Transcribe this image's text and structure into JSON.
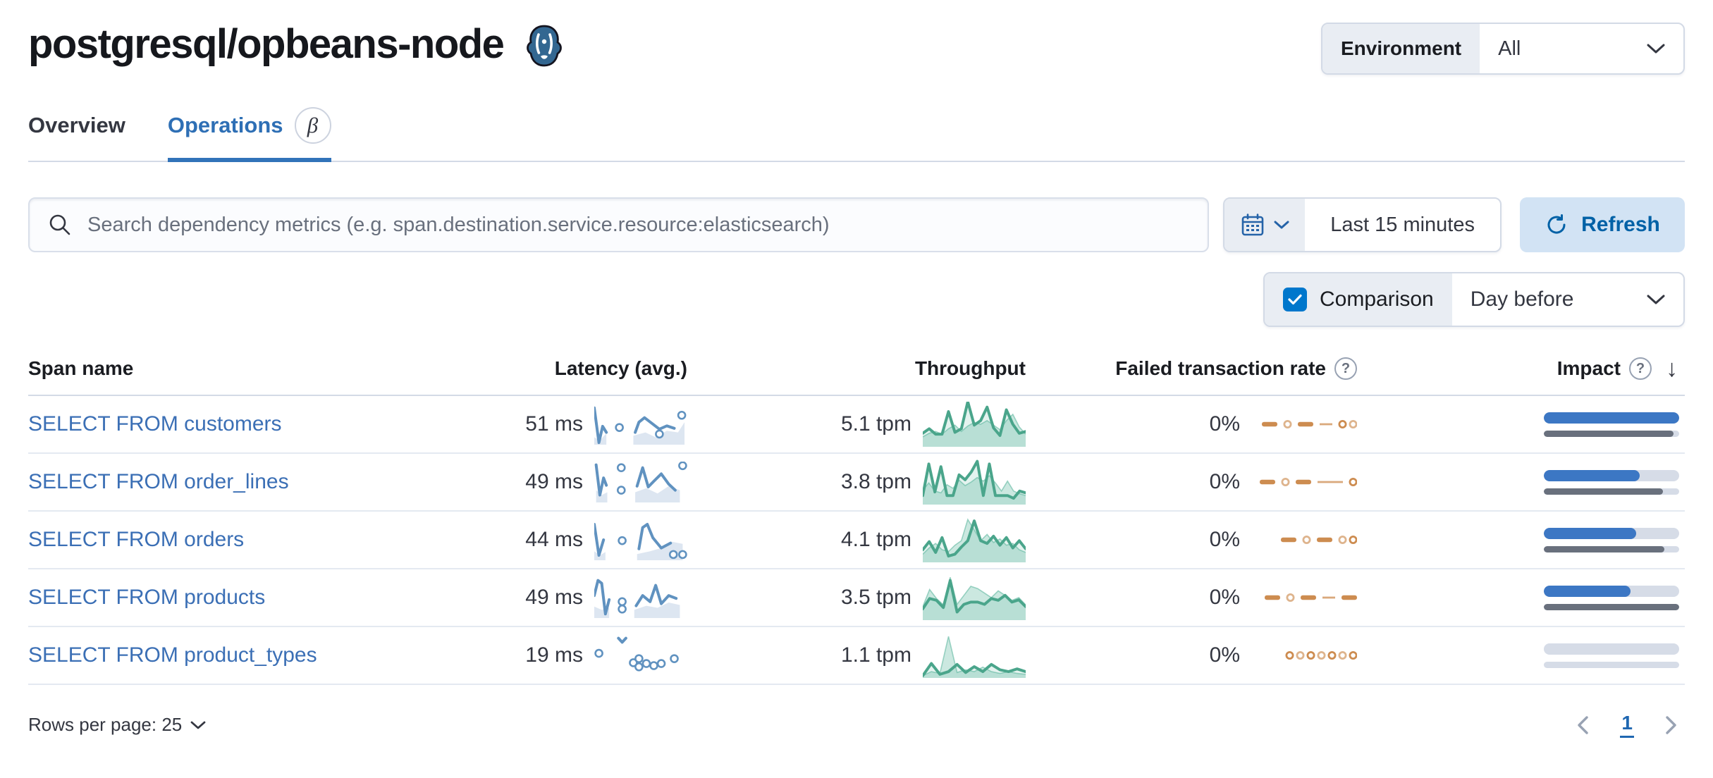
{
  "page": {
    "title": "postgresql/opbeans-node",
    "icon": "postgresql-elephant"
  },
  "environment": {
    "label": "Environment",
    "value": "All"
  },
  "tabs": {
    "overview": {
      "label": "Overview",
      "active": false
    },
    "operations": {
      "label": "Operations",
      "active": true,
      "badge": "β"
    }
  },
  "search": {
    "placeholder": "Search dependency metrics (e.g. span.destination.service.resource:elasticsearch)"
  },
  "time": {
    "range": "Last 15 minutes",
    "refresh_label": "Refresh"
  },
  "comparison": {
    "label": "Comparison",
    "checked": true,
    "value": "Day before"
  },
  "table": {
    "columns": {
      "span_name": "Span name",
      "latency": "Latency (avg.)",
      "throughput": "Throughput",
      "failed_rate": "Failed transaction rate",
      "impact": "Impact"
    },
    "sort": {
      "column": "Impact",
      "direction": "desc"
    },
    "rows": [
      {
        "span_name": "SELECT FROM customers",
        "latency": "51 ms",
        "throughput": "5.1 tpm",
        "failed_rate": "0%",
        "impact": {
          "current": 100,
          "previous": 96
        },
        "latency_spark": {
          "segments": [
            [
              [
                0.0,
                0.9
              ],
              [
                0.05,
                0.05
              ],
              [
                0.09,
                0.45
              ],
              [
                0.13,
                0.3
              ]
            ],
            [
              [
                0.44,
                0.3
              ],
              [
                0.48,
                0.55
              ],
              [
                0.54,
                0.66
              ],
              [
                0.62,
                0.52
              ],
              [
                0.7,
                0.38
              ],
              [
                0.78,
                0.46
              ],
              [
                0.86,
                0.4
              ]
            ]
          ],
          "areas": [
            [
              [
                0.0,
                0.18
              ],
              [
                0.06,
                0.1
              ],
              [
                0.13,
                0.28
              ],
              [
                0.13,
                0.0
              ],
              [
                0.0,
                0.0
              ]
            ],
            [
              [
                0.42,
                0.22
              ],
              [
                0.55,
                0.3
              ],
              [
                0.66,
                0.18
              ],
              [
                0.78,
                0.34
              ],
              [
                0.9,
                0.3
              ],
              [
                0.97,
                0.55
              ]
            ]
          ],
          "dots": [
            [
              0.27,
              0.42
            ],
            [
              0.7,
              0.26
            ],
            [
              0.94,
              0.72
            ]
          ]
        },
        "throughput_spark": {
          "current": [
            0.3,
            0.4,
            0.28,
            0.28,
            0.78,
            0.32,
            0.4,
            1.0,
            0.48,
            0.58,
            0.88,
            0.42,
            0.25,
            0.82,
            0.5,
            0.3,
            0.34
          ],
          "previous": [
            0.22,
            0.3,
            0.34,
            0.28,
            0.4,
            0.48,
            0.34,
            0.46,
            0.54,
            0.5,
            0.58,
            0.48,
            0.38,
            0.58,
            0.72,
            0.44,
            0.28
          ]
        },
        "failed_spark": [
          "dash",
          "circle",
          "dash",
          "line",
          "circle",
          "circle"
        ]
      },
      {
        "span_name": "SELECT FROM order_lines",
        "latency": "49 ms",
        "throughput": "3.8 tpm",
        "failed_rate": "0%",
        "impact": {
          "current": 71,
          "previous": 88
        },
        "latency_spark": {
          "segments": [
            [
              [
                0.02,
                0.92
              ],
              [
                0.06,
                0.18
              ],
              [
                0.1,
                0.6
              ],
              [
                0.13,
                0.42
              ]
            ],
            [
              [
                0.46,
                0.4
              ],
              [
                0.52,
                0.85
              ],
              [
                0.58,
                0.38
              ],
              [
                0.64,
                0.52
              ],
              [
                0.72,
                0.7
              ],
              [
                0.8,
                0.45
              ],
              [
                0.87,
                0.3
              ]
            ]
          ],
          "areas": [
            [
              [
                0.02,
                0.3
              ],
              [
                0.08,
                0.18
              ],
              [
                0.14,
                0.25
              ]
            ],
            [
              [
                0.44,
                0.25
              ],
              [
                0.56,
                0.35
              ],
              [
                0.68,
                0.22
              ],
              [
                0.8,
                0.4
              ],
              [
                0.92,
                0.3
              ]
            ]
          ],
          "dots": [
            [
              0.29,
              0.85
            ],
            [
              0.29,
              0.3
            ],
            [
              0.95,
              0.9
            ]
          ]
        },
        "throughput_spark": {
          "current": [
            0.2,
            0.9,
            0.28,
            0.84,
            0.2,
            0.2,
            0.66,
            0.55,
            0.72,
            0.96,
            0.2,
            0.9,
            0.2,
            0.2,
            0.2,
            0.14,
            0.3,
            0.26
          ],
          "previous": [
            0.32,
            0.48,
            0.3,
            0.26,
            0.44,
            0.36,
            0.54,
            0.42,
            0.5,
            0.6,
            0.52,
            0.64,
            0.48,
            0.3,
            0.52,
            0.3,
            0.24,
            0.2
          ]
        },
        "failed_spark": [
          "dash",
          "circle",
          "dash",
          "longline",
          "circle"
        ]
      },
      {
        "span_name": "SELECT FROM orders",
        "latency": "44 ms",
        "throughput": "4.1 tpm",
        "failed_rate": "0%",
        "impact": {
          "current": 68,
          "previous": 89
        },
        "latency_spark": {
          "segments": [
            [
              [
                0.0,
                0.88
              ],
              [
                0.05,
                0.12
              ],
              [
                0.1,
                0.5
              ]
            ],
            [
              [
                0.48,
                0.28
              ],
              [
                0.52,
                0.8
              ],
              [
                0.57,
                0.88
              ],
              [
                0.63,
                0.55
              ],
              [
                0.72,
                0.3
              ],
              [
                0.82,
                0.42
              ]
            ]
          ],
          "areas": [
            [
              [
                0.0,
                0.22
              ],
              [
                0.06,
                0.12
              ],
              [
                0.12,
                0.2
              ]
            ],
            [
              [
                0.46,
                0.15
              ],
              [
                0.6,
                0.22
              ],
              [
                0.72,
                0.3
              ],
              [
                0.84,
                0.45
              ],
              [
                0.95,
                0.4
              ]
            ]
          ],
          "dots": [
            [
              0.3,
              0.48
            ],
            [
              0.85,
              0.14
            ],
            [
              0.95,
              0.14
            ]
          ]
        },
        "throughput_spark": {
          "current": [
            0.28,
            0.46,
            0.22,
            0.55,
            0.14,
            0.18,
            0.34,
            0.48,
            0.92,
            0.48,
            0.42,
            0.58,
            0.38,
            0.55,
            0.32,
            0.48,
            0.3
          ],
          "previous": [
            0.18,
            0.32,
            0.42,
            0.28,
            0.24,
            0.38,
            0.48,
            0.95,
            0.72,
            0.48,
            0.62,
            0.44,
            0.52,
            0.38,
            0.42,
            0.28,
            0.22
          ]
        },
        "failed_spark": [
          "dash",
          "circle",
          "dash",
          "circle",
          "circle"
        ]
      },
      {
        "span_name": "SELECT FROM products",
        "latency": "49 ms",
        "throughput": "3.5 tpm",
        "failed_rate": "0%",
        "impact": {
          "current": 64,
          "previous": 100
        },
        "latency_spark": {
          "segments": [
            [
              [
                0.0,
                0.55
              ],
              [
                0.04,
                0.92
              ],
              [
                0.08,
                0.85
              ],
              [
                0.12,
                0.1
              ],
              [
                0.16,
                0.45
              ]
            ],
            [
              [
                0.45,
                0.3
              ],
              [
                0.52,
                0.55
              ],
              [
                0.6,
                0.4
              ],
              [
                0.66,
                0.8
              ],
              [
                0.72,
                0.35
              ],
              [
                0.8,
                0.55
              ],
              [
                0.88,
                0.48
              ]
            ]
          ],
          "areas": [
            [
              [
                0.0,
                0.28
              ],
              [
                0.08,
                0.2
              ],
              [
                0.16,
                0.25
              ]
            ],
            [
              [
                0.43,
                0.2
              ],
              [
                0.56,
                0.3
              ],
              [
                0.68,
                0.25
              ],
              [
                0.8,
                0.38
              ],
              [
                0.92,
                0.32
              ]
            ]
          ],
          "dots": [
            [
              0.3,
              0.4
            ],
            [
              0.3,
              0.22
            ]
          ]
        },
        "throughput_spark": {
          "current": [
            0.25,
            0.48,
            0.44,
            0.28,
            0.88,
            0.18,
            0.35,
            0.4,
            0.4,
            0.35,
            0.48,
            0.44,
            0.55,
            0.4,
            0.45,
            0.3
          ],
          "previous": [
            0.3,
            0.68,
            0.48,
            0.34,
            0.95,
            0.35,
            0.55,
            0.75,
            0.7,
            0.6,
            0.5,
            0.65,
            0.55,
            0.44,
            0.5,
            0.34
          ]
        },
        "failed_spark": [
          "dash",
          "circle",
          "dash",
          "line",
          "dash"
        ]
      },
      {
        "span_name": "SELECT FROM product_types",
        "latency": "19 ms",
        "throughput": "1.1 tpm",
        "failed_rate": "0%",
        "impact": {
          "current": 0,
          "previous": 0
        },
        "latency_spark": {
          "segments": [
            [
              [
                0.26,
                0.92
              ],
              [
                0.3,
                0.82
              ],
              [
                0.34,
                0.92
              ]
            ]
          ],
          "areas": [],
          "dots": [
            [
              0.05,
              0.55
            ],
            [
              0.42,
              0.32
            ],
            [
              0.48,
              0.42
            ],
            [
              0.48,
              0.22
            ],
            [
              0.56,
              0.3
            ],
            [
              0.64,
              0.25
            ],
            [
              0.72,
              0.3
            ],
            [
              0.86,
              0.42
            ]
          ]
        },
        "throughput_spark": {
          "current": [
            0.05,
            0.32,
            0.08,
            0.14,
            0.3,
            0.12,
            0.25,
            0.14,
            0.3,
            0.18,
            0.14,
            0.2,
            0.14
          ],
          "previous": [
            0.05,
            0.14,
            0.1,
            0.92,
            0.12,
            0.18,
            0.14,
            0.24,
            0.14,
            0.1,
            0.14,
            0.1,
            0.08
          ]
        },
        "failed_spark": [
          "circle",
          "circle",
          "circle",
          "circle",
          "circle",
          "circle",
          "circle"
        ]
      }
    ]
  },
  "footer": {
    "rows_per_page": "Rows per page: 25",
    "current_page": "1"
  },
  "colors": {
    "link_blue": "#3b6fb5",
    "tab_blue": "#2e6fb5",
    "refresh_bg": "#d2e3f4",
    "refresh_text": "#0061a6",
    "checkbox_blue": "#0077cc",
    "latency_line": "#6092c0",
    "latency_area": "#d9e3f0",
    "throughput_line": "#4aa58b",
    "throughput_area": "#54b399",
    "failed_orange": "#cd8c50",
    "impact_blue": "#3c77c4",
    "impact_grey": "#69707d",
    "impact_track": "#d6dce7"
  }
}
